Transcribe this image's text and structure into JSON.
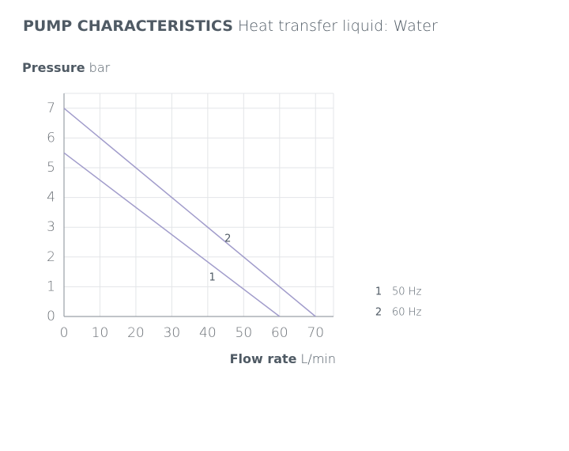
{
  "chart_data": {
    "type": "line",
    "title": "PUMP CHARACTERISTICS",
    "subtitle": "Heat transfer liquid: Water",
    "y_label": "Pressure",
    "y_unit": "bar",
    "x_label": "Flow rate",
    "x_unit": "L/min",
    "xlim": [
      0,
      75
    ],
    "xticks": [
      0,
      10,
      20,
      30,
      40,
      50,
      60,
      70
    ],
    "ylim": [
      0,
      7.5
    ],
    "yticks": [
      0,
      1,
      2,
      3,
      4,
      5,
      6,
      7
    ],
    "grid": true,
    "series": [
      {
        "label": "1",
        "name": "50 Hz",
        "color": "#a19ccb",
        "x": [
          0,
          60
        ],
        "values": [
          5.5,
          0
        ]
      },
      {
        "label": "2",
        "name": "60 Hz",
        "color": "#a19ccb",
        "x": [
          0,
          70
        ],
        "values": [
          7,
          0
        ]
      }
    ]
  }
}
